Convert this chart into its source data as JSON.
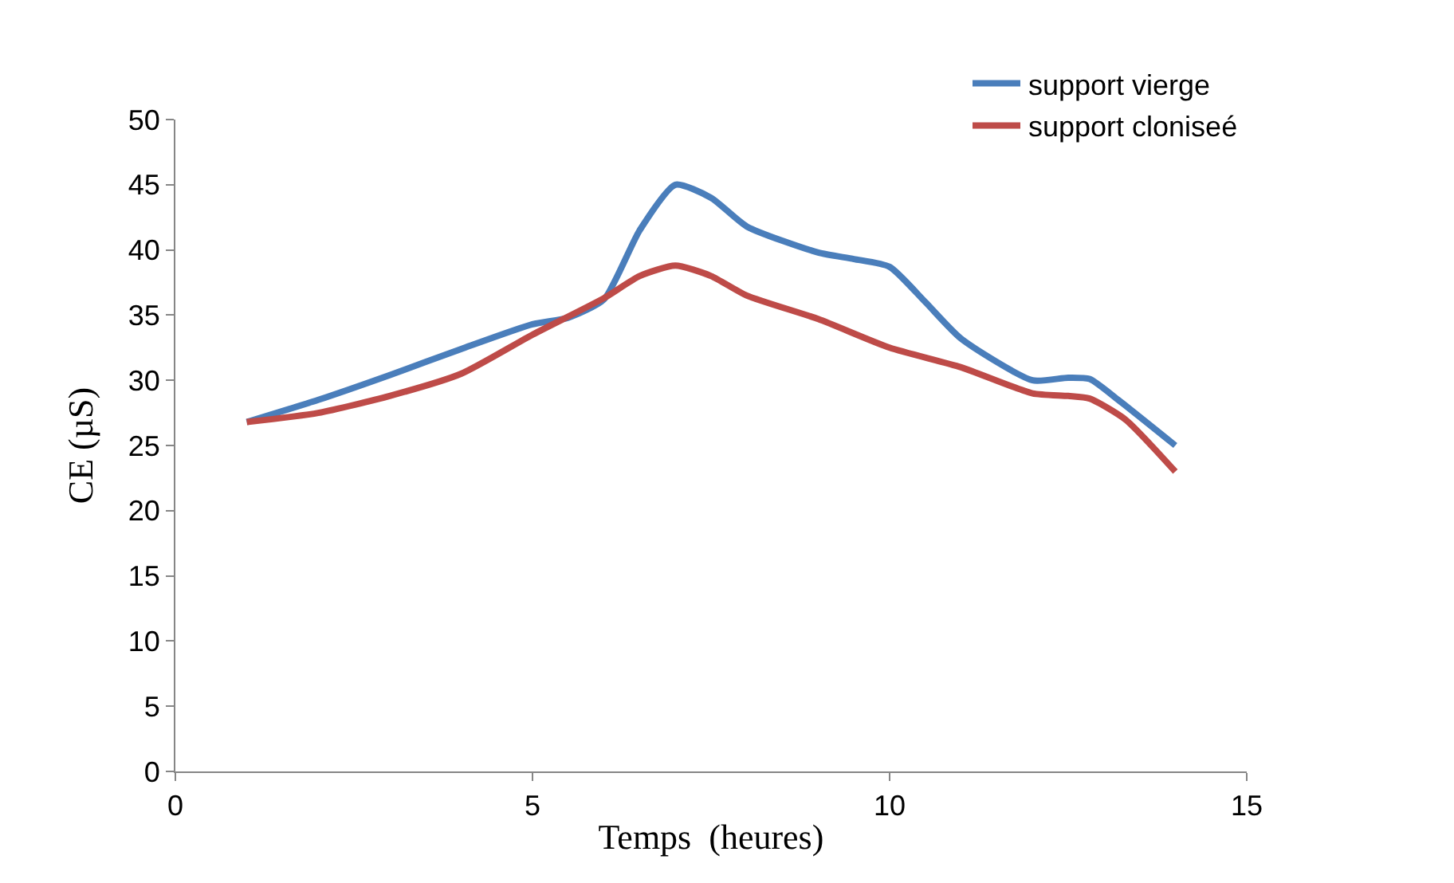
{
  "chart_data": {
    "type": "line",
    "xlabel": "Temps  (heures)",
    "ylabel": "CE (µS)",
    "xlim": [
      0,
      15
    ],
    "xticks": [
      0,
      5,
      10,
      15
    ],
    "ylim": [
      0,
      50
    ],
    "yticks": [
      0,
      5,
      10,
      15,
      20,
      25,
      30,
      35,
      40,
      45,
      50
    ],
    "legend": "top right",
    "marker": "none",
    "line_style": "solid",
    "series": [
      {
        "name": "support vierge",
        "color": "#4a7ebb",
        "x": [
          1,
          2,
          3,
          4,
          5,
          5.5,
          6,
          6.5,
          7,
          7.5,
          8,
          9,
          9.5,
          10,
          10.5,
          11,
          12,
          12.5,
          12.8,
          13.2,
          14
        ],
        "values": [
          26.8,
          28.5,
          30.4,
          32.4,
          34.3,
          34.8,
          36.2,
          41.5,
          45.0,
          44.0,
          41.8,
          39.8,
          39.3,
          38.7,
          36.0,
          33.2,
          30.0,
          30.2,
          30.1,
          28.5,
          25.0
        ]
      },
      {
        "name": "support cloniseé",
        "color": "#be4b48",
        "x": [
          1,
          2,
          3,
          4,
          5,
          6,
          6.5,
          7,
          7.5,
          8,
          9,
          10,
          11,
          12,
          12.5,
          12.8,
          13.3,
          14
        ],
        "values": [
          26.8,
          27.5,
          28.8,
          30.5,
          33.5,
          36.3,
          38.0,
          38.8,
          38.0,
          36.5,
          34.7,
          32.5,
          31.0,
          29.0,
          28.8,
          28.6,
          27.0,
          23.0
        ]
      }
    ]
  }
}
